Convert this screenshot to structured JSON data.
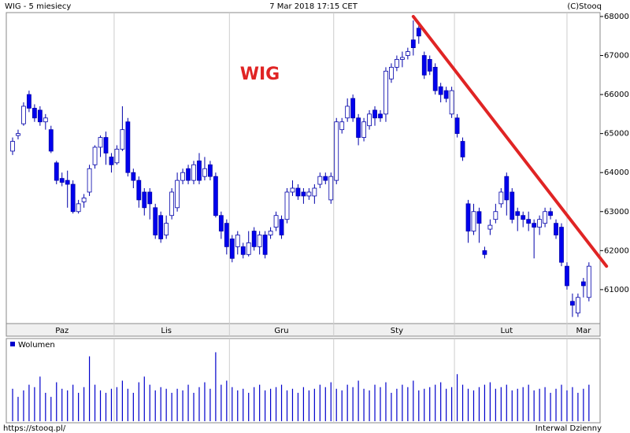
{
  "header": {
    "title": "WIG - 5 miesiecy",
    "date": "7 Mar 2018 17:15 CET",
    "credit": "(C)Stooq"
  },
  "footer": {
    "left": "https://stooq.pl/",
    "right": "Interwal Dzienny"
  },
  "chart_data": [
    {
      "type": "candlestick",
      "annotation": "WIG",
      "categories": [
        null,
        null,
        null,
        null,
        null,
        null,
        null,
        null,
        null,
        "Paz",
        null,
        null,
        null,
        null,
        null,
        null,
        null,
        null,
        null,
        null,
        null,
        null,
        null,
        null,
        null,
        null,
        null,
        null,
        "Lis",
        null,
        null,
        null,
        null,
        null,
        null,
        null,
        null,
        null,
        null,
        null,
        null,
        null,
        null,
        null,
        null,
        null,
        null,
        null,
        null,
        "Gru",
        null,
        null,
        null,
        null,
        null,
        null,
        null,
        null,
        null,
        null,
        null,
        null,
        null,
        null,
        null,
        null,
        null,
        null,
        null,
        null,
        "Sty",
        null,
        null,
        null,
        null,
        null,
        null,
        null,
        null,
        null,
        null,
        null,
        null,
        null,
        null,
        null,
        null,
        null,
        null,
        null,
        "Lut",
        null,
        null,
        null,
        null,
        null,
        null,
        null,
        null,
        null,
        null,
        null,
        null,
        null,
        "Mar",
        null
      ],
      "open": [
        64550,
        64950,
        65250,
        66000,
        65650,
        65600,
        65300,
        65100,
        64250,
        63850,
        63800,
        63700,
        63000,
        63250,
        63500,
        64200,
        64650,
        64900,
        64400,
        64250,
        64600,
        65300,
        64000,
        63800,
        63500,
        63500,
        63100,
        62900,
        62400,
        62900,
        63100,
        63800,
        64100,
        63800,
        64300,
        63900,
        64200,
        63900,
        62900,
        62700,
        62300,
        62100,
        62100,
        61900,
        62500,
        62100,
        62400,
        62400,
        62600,
        62800,
        62800,
        63500,
        63600,
        63500,
        63400,
        63400,
        63700,
        63900,
        63300,
        63800,
        65100,
        65400,
        65900,
        65400,
        64900,
        65200,
        65600,
        65500,
        65500,
        66400,
        66700,
        66900,
        67000,
        67400,
        67700,
        67000,
        66900,
        66700,
        66200,
        66100,
        65500,
        65400,
        64800,
        63200,
        62500,
        63000,
        62000,
        62550,
        62800,
        63200,
        63900,
        63500,
        63000,
        62900,
        62800,
        62700,
        62600,
        62700,
        63000,
        62700,
        62600,
        61600,
        60700,
        60400,
        61200,
        60800
      ],
      "high": [
        64900,
        65100,
        65800,
        66100,
        65750,
        65700,
        65500,
        65200,
        64300,
        64000,
        64050,
        63800,
        63300,
        63450,
        64200,
        64700,
        64950,
        65050,
        64500,
        64700,
        65700,
        65400,
        64100,
        63900,
        63600,
        63600,
        63200,
        63000,
        62900,
        63600,
        64000,
        64100,
        64200,
        64300,
        64500,
        64400,
        64300,
        64000,
        63000,
        62800,
        62400,
        62500,
        62200,
        62500,
        62600,
        62500,
        62500,
        62600,
        63000,
        62900,
        63600,
        63800,
        63700,
        63600,
        63600,
        63700,
        64000,
        64000,
        64000,
        65400,
        65400,
        65900,
        66000,
        65500,
        65400,
        65600,
        65700,
        65600,
        66700,
        66800,
        67000,
        67100,
        67200,
        67900,
        67800,
        67100,
        67000,
        66800,
        66300,
        66200,
        66200,
        65500,
        64900,
        63300,
        63200,
        63100,
        62100,
        62800,
        63200,
        63600,
        64000,
        63600,
        63100,
        63000,
        63000,
        62800,
        62900,
        63100,
        63100,
        62800,
        62700,
        61700,
        60900,
        60900,
        61300,
        61700
      ],
      "low": [
        64450,
        64850,
        65200,
        65550,
        65300,
        65200,
        65100,
        64500,
        63700,
        63650,
        63100,
        62950,
        62950,
        63100,
        63400,
        64100,
        64400,
        64200,
        64000,
        64200,
        64550,
        63900,
        63600,
        63100,
        62900,
        62800,
        62300,
        62200,
        62300,
        62800,
        63000,
        63700,
        63700,
        63700,
        63700,
        63800,
        63800,
        62850,
        62300,
        61900,
        61700,
        61900,
        61800,
        61850,
        62000,
        61900,
        61800,
        62300,
        62500,
        62300,
        62700,
        63400,
        63300,
        63200,
        63300,
        63200,
        63600,
        63700,
        63200,
        63700,
        65000,
        65300,
        65300,
        64700,
        64800,
        65100,
        65200,
        65300,
        65300,
        66300,
        66600,
        66700,
        66900,
        67000,
        67300,
        66400,
        66500,
        66000,
        65800,
        65800,
        65400,
        64900,
        64300,
        62200,
        62400,
        62200,
        61800,
        62400,
        62700,
        63100,
        62900,
        62700,
        62500,
        62600,
        62500,
        61800,
        62400,
        62600,
        62800,
        62300,
        61600,
        61000,
        60300,
        60300,
        60800,
        60700
      ],
      "close": [
        64800,
        65000,
        65700,
        65650,
        65400,
        65300,
        65400,
        64550,
        63800,
        63750,
        63700,
        63000,
        63200,
        63350,
        64100,
        64650,
        64900,
        64500,
        64200,
        64600,
        65100,
        64000,
        63800,
        63300,
        63100,
        63200,
        62400,
        62300,
        62700,
        63500,
        63800,
        64000,
        63800,
        64200,
        63800,
        64100,
        63900,
        62900,
        62500,
        62100,
        61800,
        62400,
        61900,
        62200,
        62100,
        62400,
        61900,
        62500,
        62900,
        62400,
        63500,
        63600,
        63400,
        63400,
        63500,
        63600,
        63900,
        63800,
        63900,
        65300,
        65300,
        65700,
        65400,
        64900,
        65300,
        65500,
        65400,
        65400,
        66600,
        66700,
        66900,
        66950,
        67100,
        67200,
        67500,
        66500,
        66600,
        66100,
        66000,
        65900,
        66100,
        65000,
        64400,
        62500,
        63000,
        62700,
        61900,
        62650,
        63000,
        63500,
        63300,
        62800,
        62900,
        62800,
        62700,
        62600,
        62800,
        63000,
        62900,
        62400,
        61700,
        61100,
        60600,
        60800,
        61100,
        61600
      ],
      "colors": {
        "up": "#ffffff",
        "down": "#0000ee",
        "outline": "#0000aa"
      },
      "trendline": {
        "x": [
          73,
          108.2
        ],
        "y": [
          68000,
          61600
        ],
        "color": "#e02424"
      },
      "ylim": [
        60130,
        68100
      ],
      "yticks": [
        61000,
        62000,
        63000,
        64000,
        65000,
        66000,
        67000,
        68000
      ],
      "grid": false
    },
    {
      "type": "bar",
      "series": [
        {
          "name": "Wolumen",
          "color": "#0000cc",
          "values": [
            40,
            30,
            38,
            45,
            42,
            55,
            35,
            30,
            48,
            40,
            38,
            45,
            35,
            42,
            80,
            45,
            38,
            35,
            40,
            42,
            50,
            40,
            35,
            48,
            55,
            45,
            38,
            42,
            40,
            35,
            40,
            38,
            45,
            35,
            42,
            48,
            40,
            85,
            45,
            50,
            42,
            38,
            40,
            35,
            42,
            45,
            38,
            40,
            42,
            45,
            38,
            40,
            35,
            42,
            38,
            40,
            45,
            42,
            48,
            40,
            38,
            45,
            42,
            50,
            40,
            38,
            45,
            42,
            48,
            35,
            40,
            45,
            42,
            50,
            38,
            40,
            42,
            45,
            48,
            40,
            42,
            58,
            45,
            40,
            38,
            42,
            45,
            48,
            40,
            42,
            45,
            38,
            40,
            42,
            45,
            38,
            40,
            42,
            35,
            40,
            45,
            38,
            42,
            35,
            40,
            45
          ]
        }
      ],
      "ylim": [
        0,
        100
      ]
    }
  ]
}
